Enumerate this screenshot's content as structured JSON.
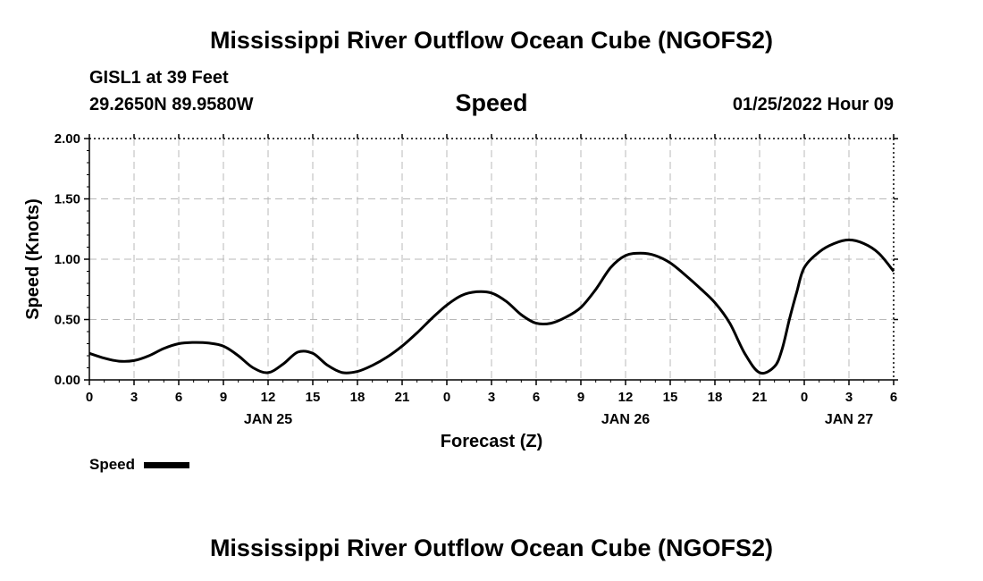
{
  "header": {
    "title": "Mississippi River Outflow Ocean Cube (NGOFS2)",
    "station": "GISL1 at 39 Feet",
    "coords": "29.2650N  89.9580W",
    "subtitle": "Speed",
    "datetime": "01/25/2022 Hour 09"
  },
  "footer": {
    "title": "Mississippi River Outflow Ocean Cube (NGOFS2)"
  },
  "chart_data": {
    "type": "line",
    "title": "Speed",
    "xlabel": "Forecast (Z)",
    "ylabel": "Speed (Knots)",
    "xlim": [
      0,
      54
    ],
    "ylim": [
      0,
      2
    ],
    "grid": true,
    "x_ticks": [
      0,
      3,
      6,
      9,
      12,
      15,
      18,
      21,
      24,
      27,
      30,
      33,
      36,
      39,
      42,
      45,
      48,
      51,
      54
    ],
    "x_tick_labels": [
      "0",
      "3",
      "6",
      "9",
      "12",
      "15",
      "18",
      "21",
      "0",
      "3",
      "6",
      "9",
      "12",
      "15",
      "18",
      "21",
      "0",
      "3",
      "6"
    ],
    "y_ticks": [
      0,
      0.5,
      1,
      1.5,
      2
    ],
    "y_tick_labels": [
      "0.00",
      "0.50",
      "1.00",
      "1.50",
      "2.00"
    ],
    "day_labels": [
      {
        "x": 12,
        "label": "JAN 25"
      },
      {
        "x": 36,
        "label": "JAN 26"
      },
      {
        "x": 51,
        "label": "JAN 27"
      }
    ],
    "series": [
      {
        "name": "Speed",
        "x": [
          0,
          1,
          2,
          3,
          4,
          5,
          6,
          7,
          8,
          9,
          10,
          11,
          12,
          13,
          14,
          15,
          16,
          17,
          18,
          19,
          20,
          21,
          22,
          23,
          24,
          25,
          26,
          27,
          28,
          29,
          30,
          31,
          32,
          33,
          34,
          35,
          36,
          37,
          38,
          39,
          40,
          41,
          42,
          43,
          44,
          45,
          46,
          46.5,
          47,
          47.5,
          48,
          49,
          50,
          51,
          52,
          53,
          54
        ],
        "values": [
          0.22,
          0.18,
          0.155,
          0.16,
          0.2,
          0.26,
          0.3,
          0.31,
          0.305,
          0.28,
          0.2,
          0.1,
          0.06,
          0.13,
          0.23,
          0.22,
          0.12,
          0.06,
          0.07,
          0.12,
          0.19,
          0.28,
          0.39,
          0.51,
          0.62,
          0.7,
          0.73,
          0.72,
          0.65,
          0.54,
          0.47,
          0.47,
          0.52,
          0.6,
          0.75,
          0.93,
          1.03,
          1.05,
          1.03,
          0.97,
          0.87,
          0.76,
          0.64,
          0.47,
          0.22,
          0.06,
          0.11,
          0.25,
          0.5,
          0.73,
          0.93,
          1.06,
          1.13,
          1.16,
          1.13,
          1.05,
          0.9
        ]
      }
    ]
  },
  "legend": {
    "label": "Speed"
  }
}
